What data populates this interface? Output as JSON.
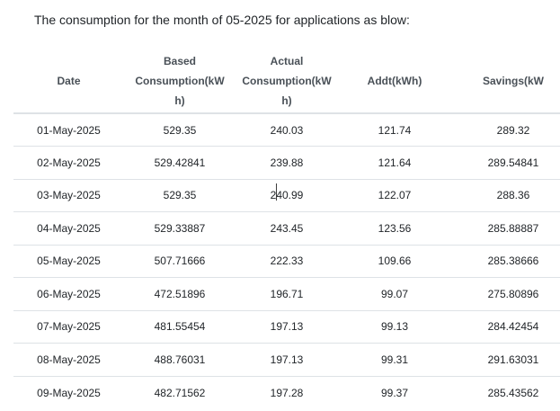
{
  "page": {
    "title": "The consumption for the month of 05-2025 for applications as blow:"
  },
  "table": {
    "columns": [
      {
        "label": "Date"
      },
      {
        "label": "Based\nConsumption(kW\nh)"
      },
      {
        "label": "Actual\nConsumption(kW\nh)"
      },
      {
        "label": "Addt(kWh)"
      },
      {
        "label": "Savings(kW"
      }
    ],
    "rows": [
      [
        "01-May-2025",
        "529.35",
        "240.03",
        "121.74",
        "289.32"
      ],
      [
        "02-May-2025",
        "529.42841",
        "239.88",
        "121.64",
        "289.54841"
      ],
      [
        "03-May-2025",
        "529.35",
        "240.99",
        "122.07",
        "288.36"
      ],
      [
        "04-May-2025",
        "529.33887",
        "243.45",
        "123.56",
        "285.88887"
      ],
      [
        "05-May-2025",
        "507.71666",
        "222.33",
        "109.66",
        "285.38666"
      ],
      [
        "06-May-2025",
        "472.51896",
        "196.71",
        "99.07",
        "275.80896"
      ],
      [
        "07-May-2025",
        "481.55454",
        "197.13",
        "99.13",
        "284.42454"
      ],
      [
        "08-May-2025",
        "488.76031",
        "197.13",
        "99.31",
        "291.63031"
      ],
      [
        "09-May-2025",
        "482.71562",
        "197.28",
        "99.37",
        "285.43562"
      ]
    ]
  },
  "colors": {
    "background": "#ffffff",
    "title_text": "#212529",
    "header_text": "#495057",
    "body_text": "#212529",
    "border": "#dee2e6"
  }
}
